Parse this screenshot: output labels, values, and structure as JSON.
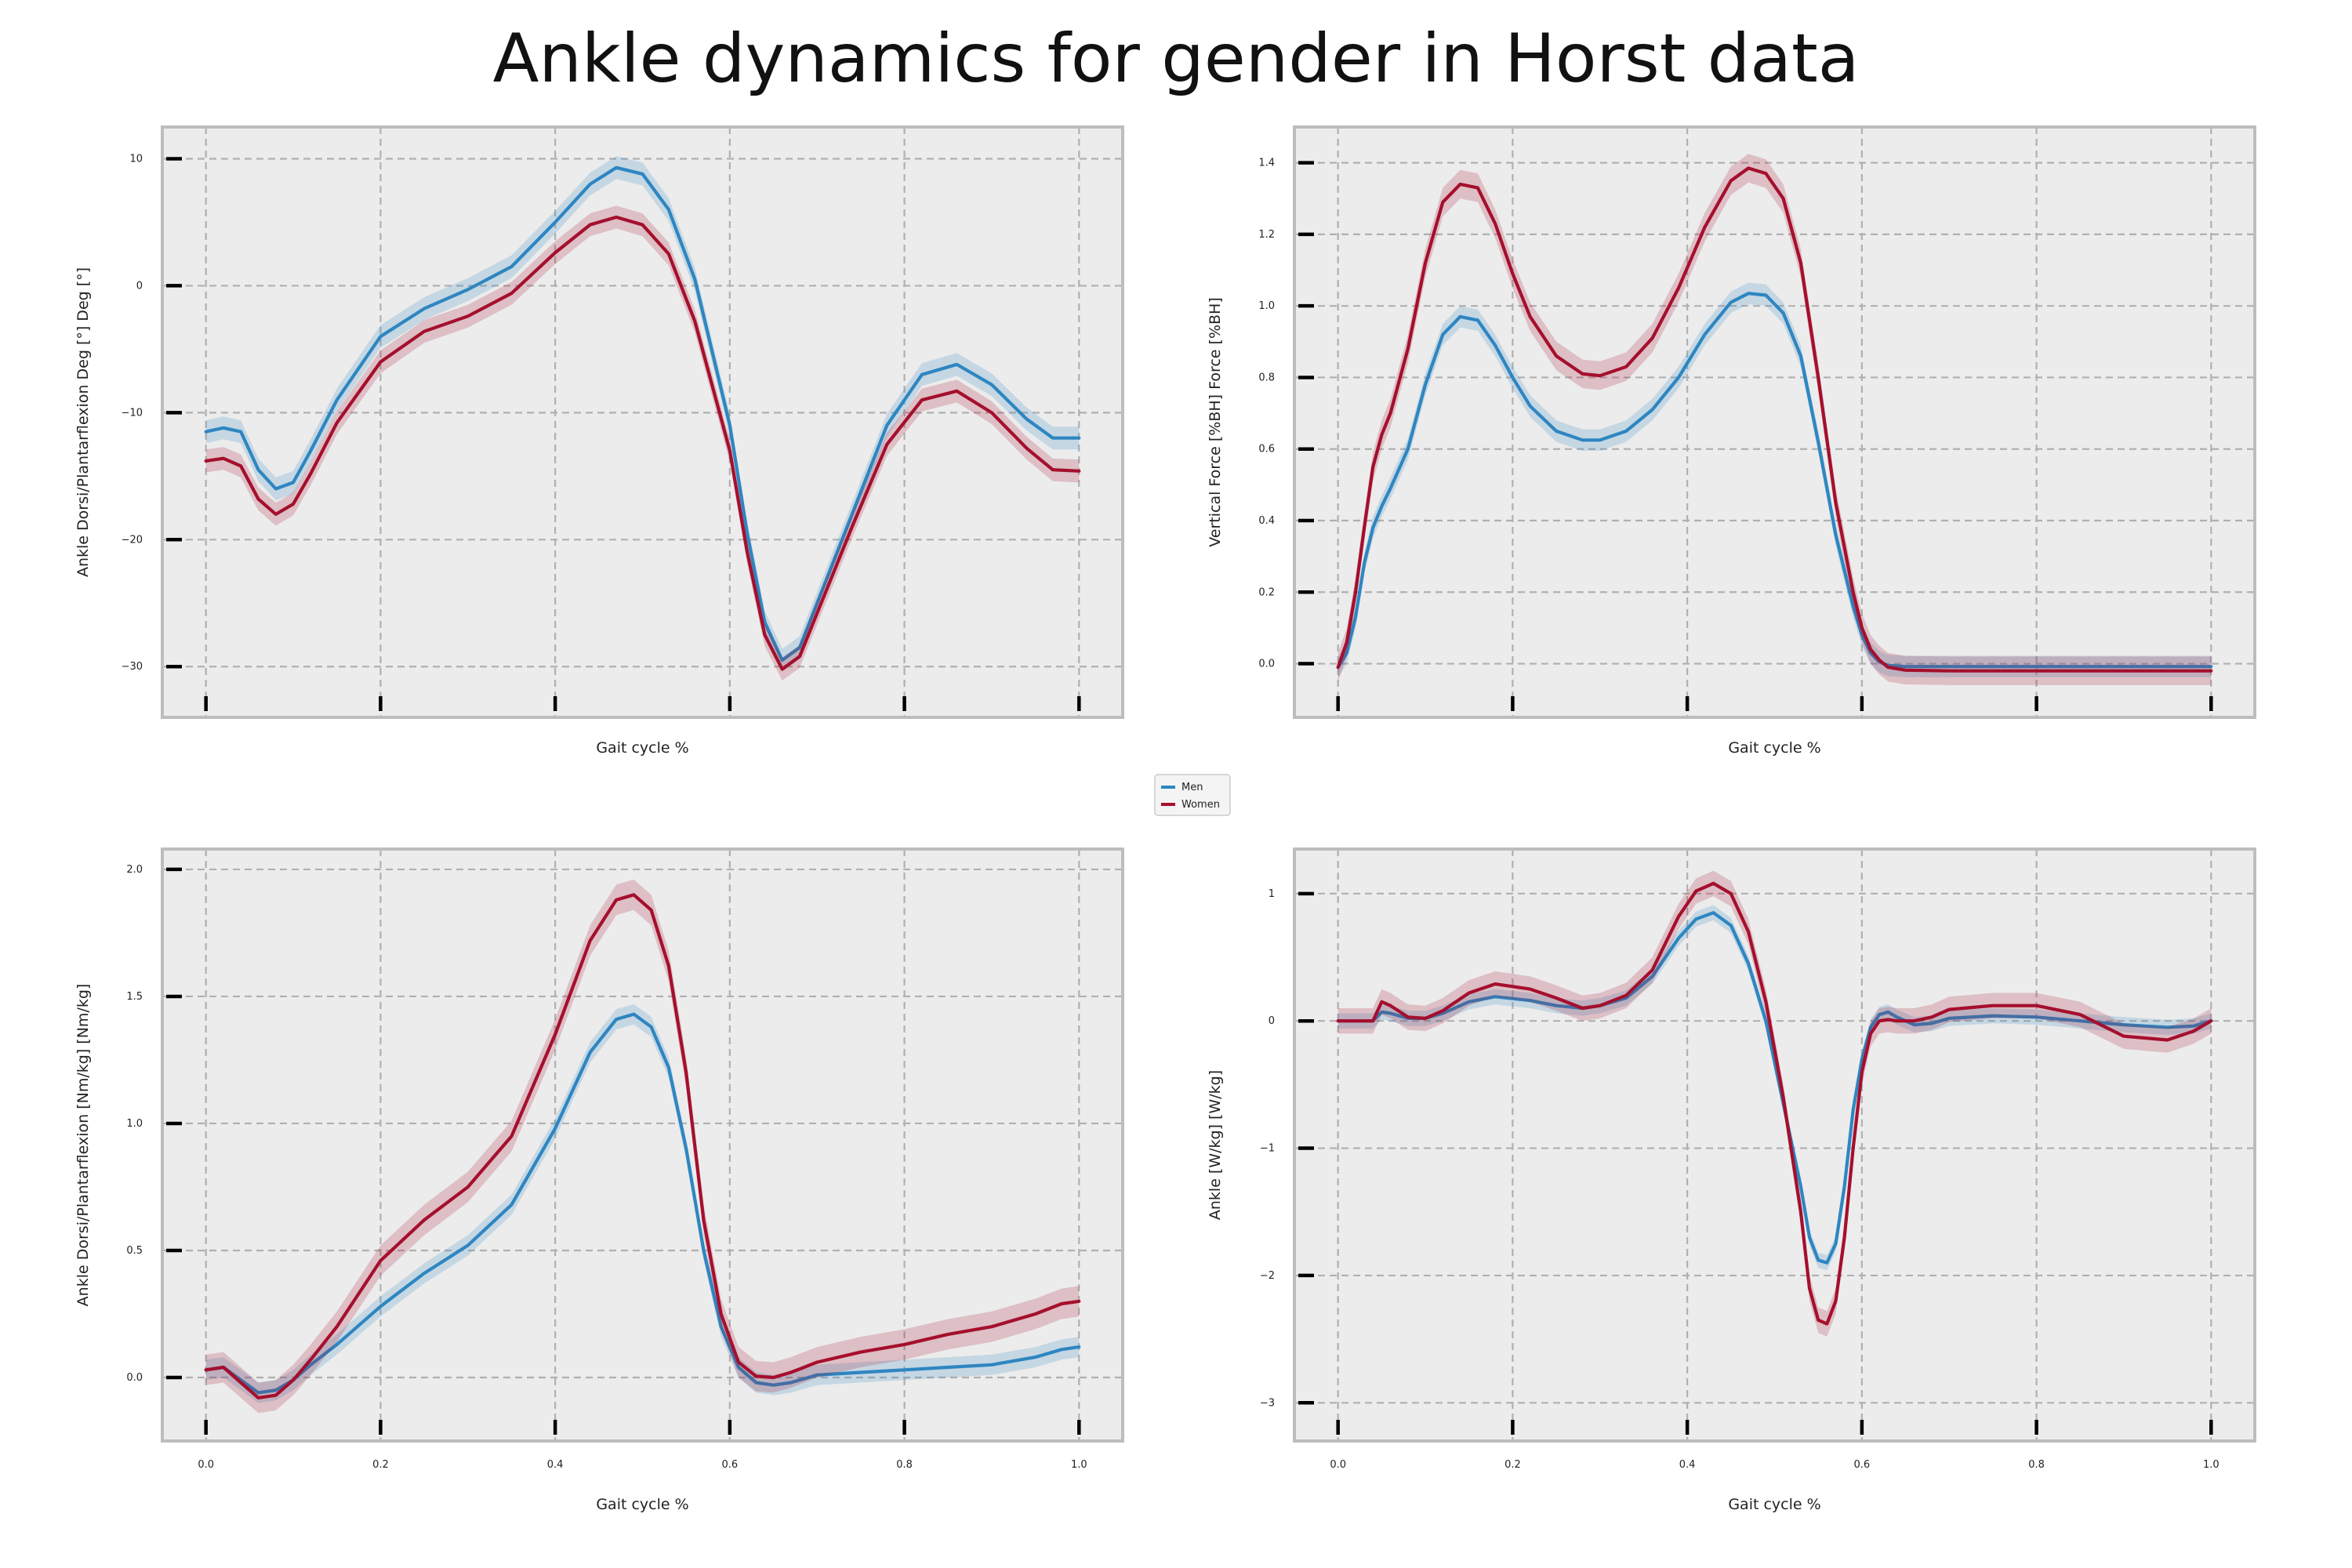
{
  "figure": {
    "title": "Ankle dynamics for gender in Horst data"
  },
  "legend": {
    "entries": [
      {
        "name": "Men",
        "color": "#2e86c1"
      },
      {
        "name": "Women",
        "color": "#a50f2d"
      }
    ]
  },
  "colors": {
    "panel_bg": "#ececec",
    "grid": "#b0b0b0",
    "spine": "#bdbdbd",
    "men": "#2e86c1",
    "women": "#a50f2d"
  },
  "chart_data": [
    {
      "type": "line",
      "panel": "top-left",
      "title": "",
      "xlabel": "Gait cycle %",
      "ylabel": "Ankle Dorsi/Plantarflexion Deg [°] Deg [°]",
      "xlim": [
        -0.05,
        1.05
      ],
      "ylim": [
        -34,
        12.5
      ],
      "xticks": [
        0.0,
        0.2,
        0.4,
        0.6,
        0.8,
        1.0
      ],
      "xtick_labels": [],
      "yticks": [
        -30,
        -20,
        -10,
        0,
        10
      ],
      "ytick_labels": [
        "−30",
        "−20",
        "−10",
        "0",
        "10"
      ],
      "grid": true,
      "series": [
        {
          "name": "Men",
          "x": [
            0.0,
            0.02,
            0.04,
            0.06,
            0.08,
            0.1,
            0.12,
            0.15,
            0.2,
            0.25,
            0.3,
            0.35,
            0.4,
            0.44,
            0.47,
            0.5,
            0.53,
            0.56,
            0.6,
            0.62,
            0.64,
            0.66,
            0.68,
            0.7,
            0.74,
            0.78,
            0.82,
            0.86,
            0.9,
            0.94,
            0.97,
            1.0
          ],
          "y": [
            -11.5,
            -11.2,
            -11.5,
            -14.5,
            -16.0,
            -15.5,
            -13.0,
            -9.0,
            -4.0,
            -1.8,
            -0.3,
            1.5,
            5.0,
            8.0,
            9.3,
            8.8,
            6.0,
            0.5,
            -11.0,
            -19.5,
            -26.5,
            -29.5,
            -28.5,
            -25.0,
            -18.0,
            -11.0,
            -7.0,
            -6.2,
            -7.8,
            -10.5,
            -12.0,
            -12.0
          ],
          "band": 0.9
        },
        {
          "name": "Women",
          "x": [
            0.0,
            0.02,
            0.04,
            0.06,
            0.08,
            0.1,
            0.12,
            0.15,
            0.2,
            0.25,
            0.3,
            0.35,
            0.4,
            0.44,
            0.47,
            0.5,
            0.53,
            0.56,
            0.6,
            0.62,
            0.64,
            0.66,
            0.68,
            0.7,
            0.74,
            0.78,
            0.82,
            0.86,
            0.9,
            0.94,
            0.97,
            1.0
          ],
          "y": [
            -13.8,
            -13.6,
            -14.2,
            -16.8,
            -18.0,
            -17.2,
            -14.8,
            -10.8,
            -6.0,
            -3.6,
            -2.4,
            -0.6,
            2.6,
            4.8,
            5.4,
            4.8,
            2.5,
            -2.8,
            -13.0,
            -21.0,
            -27.5,
            -30.2,
            -29.2,
            -25.8,
            -19.0,
            -12.5,
            -9.0,
            -8.3,
            -10.0,
            -12.8,
            -14.5,
            -14.6
          ],
          "band": 0.9
        }
      ]
    },
    {
      "type": "line",
      "panel": "top-right",
      "title": "",
      "xlabel": "Gait cycle %",
      "ylabel": "Vertical Force [%BH] Force [%BH]",
      "xlim": [
        -0.05,
        1.05
      ],
      "ylim": [
        -0.15,
        1.5
      ],
      "xticks": [
        0.0,
        0.2,
        0.4,
        0.6,
        0.8,
        1.0
      ],
      "xtick_labels": [],
      "yticks": [
        0.0,
        0.2,
        0.4,
        0.6,
        0.8,
        1.0,
        1.2,
        1.4
      ],
      "ytick_labels": [
        "0.0",
        "0.2",
        "0.4",
        "0.6",
        "0.8",
        "1.0",
        "1.2",
        "1.4"
      ],
      "grid": true,
      "series": [
        {
          "name": "Men",
          "x": [
            0.0,
            0.01,
            0.02,
            0.03,
            0.04,
            0.05,
            0.06,
            0.08,
            0.1,
            0.12,
            0.14,
            0.16,
            0.18,
            0.2,
            0.22,
            0.25,
            0.28,
            0.3,
            0.33,
            0.36,
            0.39,
            0.42,
            0.45,
            0.47,
            0.49,
            0.51,
            0.53,
            0.55,
            0.57,
            0.59,
            0.6,
            0.61,
            0.62,
            0.63,
            0.65,
            0.7,
            0.8,
            0.9,
            1.0
          ],
          "y": [
            -0.01,
            0.03,
            0.13,
            0.28,
            0.38,
            0.44,
            0.49,
            0.6,
            0.78,
            0.92,
            0.97,
            0.96,
            0.89,
            0.8,
            0.72,
            0.65,
            0.625,
            0.625,
            0.65,
            0.71,
            0.8,
            0.92,
            1.01,
            1.035,
            1.03,
            0.98,
            0.86,
            0.62,
            0.36,
            0.16,
            0.08,
            0.03,
            0.005,
            -0.005,
            -0.008,
            -0.008,
            -0.008,
            -0.008,
            -0.008
          ],
          "band": 0.03
        },
        {
          "name": "Women",
          "x": [
            0.0,
            0.01,
            0.02,
            0.03,
            0.04,
            0.05,
            0.06,
            0.08,
            0.1,
            0.12,
            0.14,
            0.16,
            0.18,
            0.2,
            0.22,
            0.25,
            0.28,
            0.3,
            0.33,
            0.36,
            0.39,
            0.42,
            0.45,
            0.47,
            0.49,
            0.51,
            0.53,
            0.55,
            0.57,
            0.59,
            0.6,
            0.61,
            0.62,
            0.63,
            0.65,
            0.7,
            0.8,
            0.9,
            1.0
          ],
          "y": [
            -0.01,
            0.06,
            0.2,
            0.38,
            0.55,
            0.64,
            0.7,
            0.88,
            1.12,
            1.29,
            1.34,
            1.33,
            1.23,
            1.09,
            0.97,
            0.86,
            0.81,
            0.805,
            0.83,
            0.91,
            1.05,
            1.22,
            1.35,
            1.385,
            1.37,
            1.3,
            1.12,
            0.8,
            0.45,
            0.2,
            0.1,
            0.04,
            0.01,
            -0.01,
            -0.018,
            -0.02,
            -0.02,
            -0.02,
            -0.02
          ],
          "band": 0.04
        }
      ]
    },
    {
      "type": "line",
      "panel": "bottom-left",
      "title": "",
      "xlabel": "Gait cycle %",
      "ylabel": "Ankle Dorsi/Plantarflexion [Nm/kg] [Nm/kg]",
      "xlim": [
        -0.05,
        1.05
      ],
      "ylim": [
        -0.25,
        2.08
      ],
      "xticks": [
        0.0,
        0.2,
        0.4,
        0.6,
        0.8,
        1.0
      ],
      "xtick_labels": [
        "0.0",
        "0.2",
        "0.4",
        "0.6",
        "0.8",
        "1.0"
      ],
      "yticks": [
        0.0,
        0.5,
        1.0,
        1.5,
        2.0
      ],
      "ytick_labels": [
        "0.0",
        "0.5",
        "1.0",
        "1.5",
        "2.0"
      ],
      "grid": true,
      "series": [
        {
          "name": "Men",
          "x": [
            0.0,
            0.02,
            0.04,
            0.06,
            0.08,
            0.1,
            0.12,
            0.15,
            0.2,
            0.25,
            0.3,
            0.35,
            0.4,
            0.44,
            0.47,
            0.49,
            0.51,
            0.53,
            0.55,
            0.57,
            0.59,
            0.61,
            0.63,
            0.65,
            0.67,
            0.7,
            0.75,
            0.8,
            0.85,
            0.9,
            0.95,
            0.98,
            1.0
          ],
          "y": [
            0.03,
            0.04,
            -0.01,
            -0.06,
            -0.05,
            -0.01,
            0.05,
            0.13,
            0.28,
            0.41,
            0.52,
            0.68,
            0.98,
            1.28,
            1.41,
            1.43,
            1.38,
            1.22,
            0.9,
            0.5,
            0.2,
            0.04,
            -0.02,
            -0.03,
            -0.02,
            0.01,
            0.02,
            0.03,
            0.04,
            0.05,
            0.08,
            0.11,
            0.12
          ],
          "band": 0.04
        },
        {
          "name": "Women",
          "x": [
            0.0,
            0.02,
            0.04,
            0.06,
            0.08,
            0.1,
            0.12,
            0.15,
            0.2,
            0.25,
            0.3,
            0.35,
            0.4,
            0.44,
            0.47,
            0.49,
            0.51,
            0.53,
            0.55,
            0.57,
            0.59,
            0.61,
            0.63,
            0.65,
            0.67,
            0.7,
            0.75,
            0.8,
            0.85,
            0.9,
            0.95,
            0.98,
            1.0
          ],
          "y": [
            0.03,
            0.04,
            -0.02,
            -0.08,
            -0.07,
            -0.01,
            0.07,
            0.2,
            0.46,
            0.62,
            0.75,
            0.95,
            1.35,
            1.72,
            1.88,
            1.9,
            1.84,
            1.62,
            1.2,
            0.62,
            0.25,
            0.06,
            0.005,
            0.0,
            0.02,
            0.06,
            0.1,
            0.13,
            0.17,
            0.2,
            0.25,
            0.29,
            0.3
          ],
          "band": 0.06
        }
      ]
    },
    {
      "type": "line",
      "panel": "bottom-right",
      "title": "",
      "xlabel": "Gait cycle %",
      "ylabel": "Ankle [W/kg] [W/kg]",
      "xlim": [
        -0.05,
        1.05
      ],
      "ylim": [
        -3.3,
        1.35
      ],
      "xticks": [
        0.0,
        0.2,
        0.4,
        0.6,
        0.8,
        1.0
      ],
      "xtick_labels": [
        "0.0",
        "0.2",
        "0.4",
        "0.6",
        "0.8",
        "1.0"
      ],
      "yticks": [
        -3,
        -2,
        -1,
        0,
        1
      ],
      "ytick_labels": [
        "−3",
        "−2",
        "−1",
        "0",
        "1"
      ],
      "grid": true,
      "series": [
        {
          "name": "Men",
          "x": [
            0.0,
            0.02,
            0.04,
            0.05,
            0.06,
            0.08,
            0.1,
            0.12,
            0.15,
            0.18,
            0.22,
            0.25,
            0.28,
            0.3,
            0.33,
            0.36,
            0.39,
            0.41,
            0.43,
            0.45,
            0.47,
            0.49,
            0.51,
            0.53,
            0.54,
            0.55,
            0.56,
            0.57,
            0.58,
            0.59,
            0.6,
            0.61,
            0.62,
            0.63,
            0.64,
            0.66,
            0.68,
            0.7,
            0.75,
            0.8,
            0.85,
            0.9,
            0.95,
            0.98,
            1.0
          ],
          "y": [
            0.0,
            0.0,
            0.0,
            0.07,
            0.06,
            0.02,
            0.02,
            0.06,
            0.15,
            0.19,
            0.16,
            0.12,
            0.1,
            0.12,
            0.18,
            0.35,
            0.65,
            0.8,
            0.85,
            0.75,
            0.45,
            0.0,
            -0.65,
            -1.3,
            -1.7,
            -1.88,
            -1.9,
            -1.75,
            -1.3,
            -0.7,
            -0.3,
            -0.05,
            0.05,
            0.07,
            0.03,
            -0.03,
            -0.02,
            0.02,
            0.04,
            0.03,
            0.0,
            -0.03,
            -0.05,
            -0.04,
            0.0
          ],
          "band": 0.06
        },
        {
          "name": "Women",
          "x": [
            0.0,
            0.02,
            0.04,
            0.05,
            0.06,
            0.08,
            0.1,
            0.12,
            0.15,
            0.18,
            0.22,
            0.25,
            0.28,
            0.3,
            0.33,
            0.36,
            0.39,
            0.41,
            0.43,
            0.45,
            0.47,
            0.49,
            0.51,
            0.53,
            0.54,
            0.55,
            0.56,
            0.57,
            0.58,
            0.59,
            0.6,
            0.61,
            0.62,
            0.63,
            0.64,
            0.66,
            0.68,
            0.7,
            0.75,
            0.8,
            0.85,
            0.9,
            0.95,
            0.98,
            1.0
          ],
          "y": [
            0.0,
            0.0,
            0.0,
            0.15,
            0.12,
            0.03,
            0.02,
            0.08,
            0.22,
            0.29,
            0.25,
            0.18,
            0.1,
            0.12,
            0.2,
            0.4,
            0.82,
            1.02,
            1.08,
            1.0,
            0.7,
            0.15,
            -0.6,
            -1.5,
            -2.1,
            -2.35,
            -2.38,
            -2.2,
            -1.7,
            -1.0,
            -0.4,
            -0.1,
            0.0,
            0.01,
            0.0,
            0.0,
            0.03,
            0.09,
            0.12,
            0.12,
            0.05,
            -0.12,
            -0.15,
            -0.08,
            0.0
          ],
          "band": 0.1
        }
      ]
    }
  ]
}
